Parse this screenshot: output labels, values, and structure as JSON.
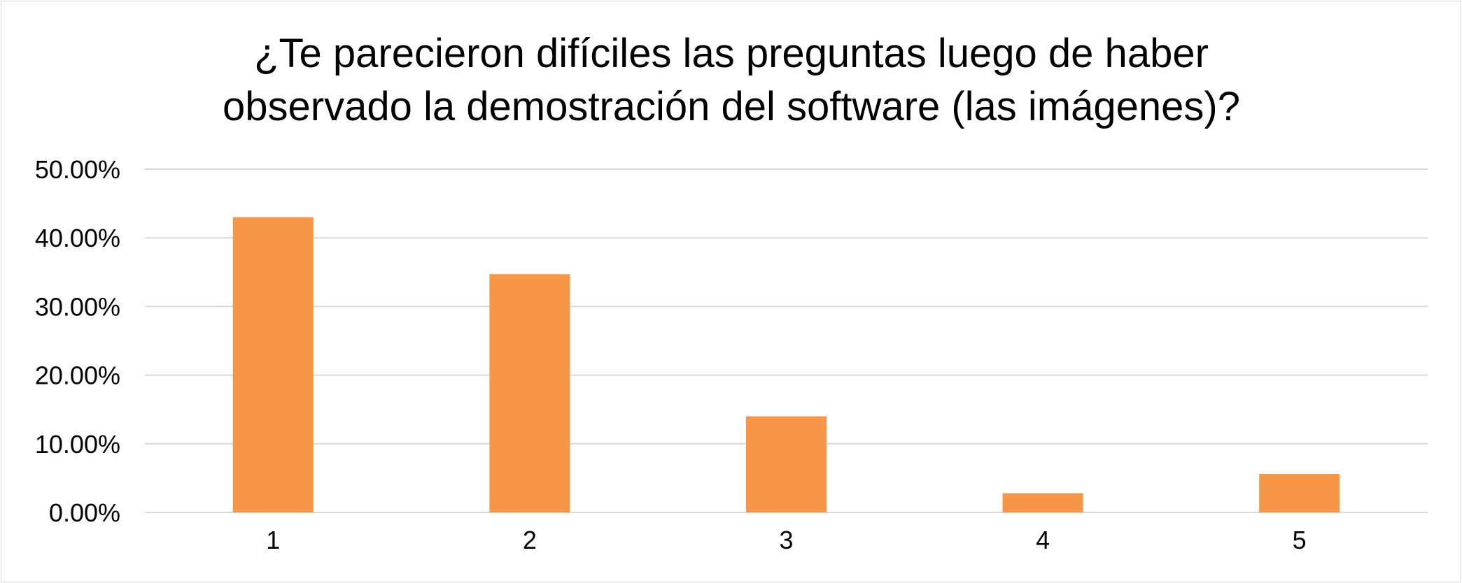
{
  "chart_data": {
    "type": "bar",
    "title_lines": [
      "¿Te parecieron difíciles las preguntas luego de haber",
      "observado la demostración del software (las imágenes)?"
    ],
    "categories": [
      "1",
      "2",
      "3",
      "4",
      "5"
    ],
    "values": [
      43.0,
      34.7,
      14.0,
      2.8,
      5.6
    ],
    "y_ticks": [
      "0.00%",
      "10.00%",
      "20.00%",
      "30.00%",
      "40.00%",
      "50.00%"
    ],
    "ylim": [
      0,
      50
    ],
    "xlabel": "",
    "ylabel": "",
    "grid": true,
    "legend": "none",
    "bar_color": "#F79646",
    "grid_color": "#D9D9D9"
  }
}
